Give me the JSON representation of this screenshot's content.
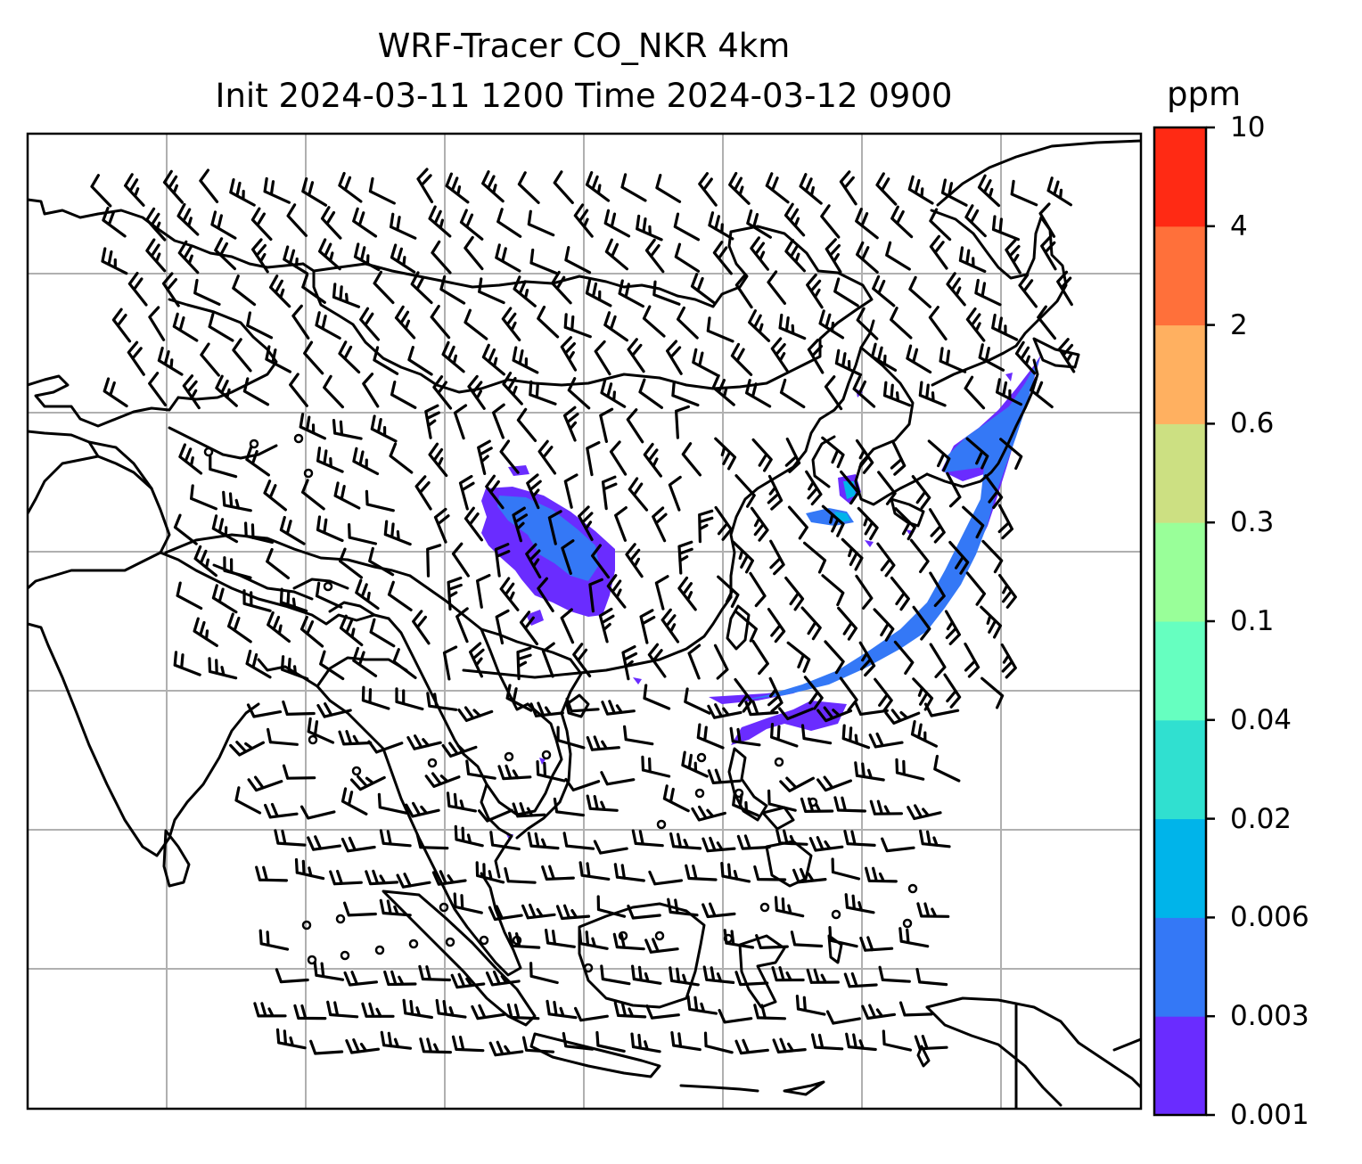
{
  "title": {
    "line1": "WRF-Tracer CO_NKR 4km",
    "line2": "Init 2024-03-11 1200 Time 2024-03-12 0900"
  },
  "colorbar": {
    "unit": "ppm",
    "levels": [
      "0.001",
      "0.003",
      "0.006",
      "0.02",
      "0.04",
      "0.1",
      "0.3",
      "0.6",
      "2",
      "4",
      "10"
    ],
    "colors": [
      "#6a2cff",
      "#3478f6",
      "#00b4ea",
      "#30e0d0",
      "#66ffc0",
      "#99ff99",
      "#cce082",
      "#ffb060",
      "#ff703a",
      "#ff2a14"
    ]
  },
  "map": {
    "gridlines": true,
    "plume_color_low": "#6a2cff",
    "plume_color_mid": "#3478f6",
    "plume_color_cyan": "#00b4ea",
    "coast_color": "#000000",
    "grid_color": "#b0b0b0"
  }
}
